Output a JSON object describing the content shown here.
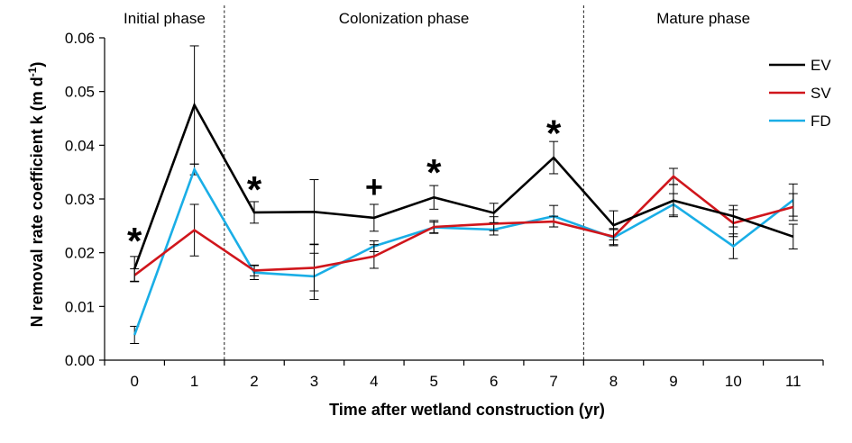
{
  "chart_data": {
    "type": "line",
    "xlabel": "Time after wetland construction (yr)",
    "ylabel": "N removal rate coefficient k (m d",
    "ylabel_sup": "-1",
    "ylabel_close": ")",
    "x": [
      0,
      1,
      2,
      3,
      4,
      5,
      6,
      7,
      8,
      9,
      10,
      11
    ],
    "x_tick_labels": [
      "0",
      "1",
      "2",
      "3",
      "4",
      "5",
      "6",
      "7",
      "8",
      "9",
      "10",
      "11"
    ],
    "y_tick_labels": [
      "0.00",
      "0.01",
      "0.02",
      "0.03",
      "0.04",
      "0.05",
      "0.06"
    ],
    "xlim": [
      -0.5,
      11.5
    ],
    "ylim": [
      0,
      0.06
    ],
    "grid": false,
    "legend_position": "top-right",
    "phases": [
      {
        "label": "Initial phase",
        "start": -0.5,
        "end": 1.5
      },
      {
        "label": "Colonization phase",
        "start": 1.5,
        "end": 7.5
      },
      {
        "label": "Mature phase",
        "start": 7.5,
        "end": 11.5
      }
    ],
    "series": [
      {
        "name": "EV",
        "color": "#000000",
        "values": [
          0.017,
          0.0475,
          0.0275,
          0.0276,
          0.0265,
          0.0303,
          0.0274,
          0.0377,
          0.0251,
          0.0297,
          0.0268,
          0.023
        ],
        "errors": [
          0.0023,
          0.011,
          0.002,
          0.006,
          0.0025,
          0.0022,
          0.0018,
          0.003,
          0.0027,
          0.003,
          0.002,
          0.0023
        ]
      },
      {
        "name": "SV",
        "color": "#d0161c",
        "values": [
          0.0158,
          0.0242,
          0.0167,
          0.0172,
          0.0193,
          0.0248,
          0.0254,
          0.0258,
          0.023,
          0.0342,
          0.0255,
          0.0285
        ],
        "errors": [
          0.0012,
          0.0048,
          0.001,
          0.0043,
          0.0022,
          0.0012,
          0.0013,
          0.001,
          0.0015,
          0.0015,
          0.0025,
          0.0025
        ]
      },
      {
        "name": "FD",
        "color": "#1aaee6",
        "values": [
          0.0047,
          0.0355,
          0.0163,
          0.0156,
          0.0212,
          0.0247,
          0.0243,
          0.0268,
          0.0228,
          0.029,
          0.0212,
          0.0298
        ],
        "errors": [
          0.0016,
          0.001,
          0.0013,
          0.0043,
          0.001,
          0.001,
          0.001,
          0.002,
          0.0015,
          0.002,
          0.0023,
          0.003
        ]
      }
    ],
    "annotations": [
      {
        "text": "*",
        "x": 0,
        "y": 0.0235
      },
      {
        "text": "*",
        "x": 2,
        "y": 0.033
      },
      {
        "text": "+",
        "x": 4,
        "y": 0.032
      },
      {
        "text": "*",
        "x": 5,
        "y": 0.0362
      },
      {
        "text": "*",
        "x": 7,
        "y": 0.0435
      }
    ]
  }
}
